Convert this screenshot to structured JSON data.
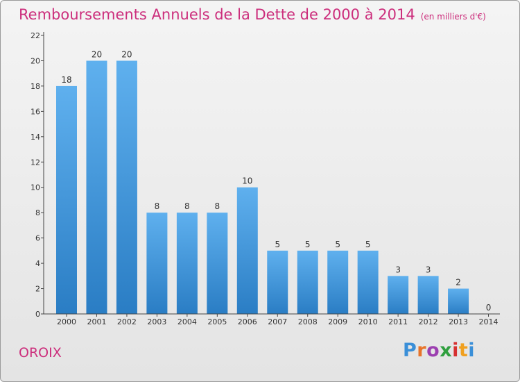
{
  "header": {
    "title": "Remboursements Annuels de la Dette de 2000 à 2014",
    "unit": "(en milliers d'€)"
  },
  "footer": {
    "commune": "OROIX",
    "logo_letters": [
      "P",
      "r",
      "o",
      "x",
      "i",
      "t",
      "i"
    ],
    "logo_colors": [
      "#3a8fd8",
      "#e8742a",
      "#9c3fb0",
      "#2f9f3e",
      "#d63030",
      "#f0a020",
      "#3a8fd8"
    ]
  },
  "chart_data": {
    "type": "bar",
    "title": "Remboursements Annuels de la Dette de 2000 à 2014",
    "xlabel": "",
    "ylabel": "",
    "categories": [
      "2000",
      "2001",
      "2002",
      "2003",
      "2004",
      "2005",
      "2006",
      "2007",
      "2008",
      "2009",
      "2010",
      "2011",
      "2012",
      "2013",
      "2014"
    ],
    "values": [
      18,
      20,
      20,
      8,
      8,
      8,
      10,
      5,
      5,
      5,
      5,
      3,
      3,
      2,
      0
    ],
    "data_labels": [
      "18",
      "20",
      "20",
      "8",
      "8",
      "8",
      "10",
      "5",
      "5",
      "5",
      "5",
      "3",
      "3",
      "2",
      "0"
    ],
    "ylim": [
      0,
      22
    ],
    "yticks": [
      0,
      2,
      4,
      6,
      8,
      10,
      12,
      14,
      16,
      18,
      20,
      22
    ],
    "grid": false,
    "legend": "none",
    "colors": {
      "bar_light": "#5fb0ee",
      "bar_dark": "#2a7dc4",
      "axis": "#444444"
    }
  }
}
